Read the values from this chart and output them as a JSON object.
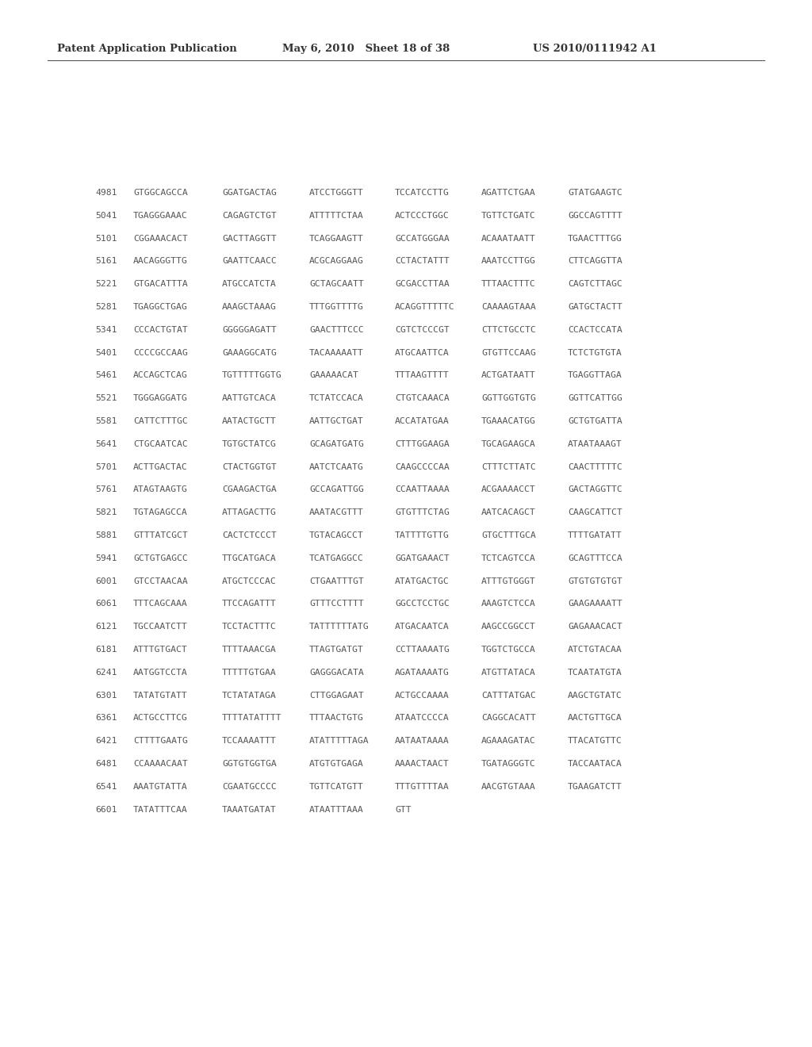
{
  "header_left": "Patent Application Publication",
  "header_mid": "May 6, 2010   Sheet 18 of 38",
  "header_right": "US 2010/0111942 A1",
  "sequence_lines": [
    [
      "4981",
      "GTGGCAGCCA",
      "GGATGACTAG",
      "ATCCTGGGTT",
      "TCCATCCTTG",
      "AGATTCTGAA",
      "GTATGAAGTC"
    ],
    [
      "5041",
      "TGAGGGAAAC",
      "CAGAGTCTGT",
      "ATTTTTCTAA",
      "ACTCCCTGGC",
      "TGTTCTGATC",
      "GGCCAGTTTT"
    ],
    [
      "5101",
      "CGGAAACACT",
      "GACTTAGGTT",
      "TCAGGAAGTT",
      "GCCATGGGAA",
      "ACAAATAATT",
      "TGAACTTTGG"
    ],
    [
      "5161",
      "AACAGGGTTG",
      "GAATTCAACC",
      "ACGCAGGAAG",
      "CCTACTATTT",
      "AAATCCTTGG",
      "CTTCAGGTTA"
    ],
    [
      "5221",
      "GTGACATTTA",
      "ATGCCATCTA",
      "GCTAGCAATT",
      "GCGACCTTAA",
      "TTTAACTTTC",
      "CAGTCTTAGC"
    ],
    [
      "5281",
      "TGAGGCTGAG",
      "AAAGCTAAAG",
      "TTTGGTTTTG",
      "ACAGGTTTTTC",
      "CAAAAGTAAA",
      "GATGCTACTT"
    ],
    [
      "5341",
      "CCCACTGTAT",
      "GGGGGAGATT",
      "GAACTTTCCC",
      "CGTCTCCCGT",
      "CTTCTGCCTC",
      "CCACTCCATA"
    ],
    [
      "5401",
      "CCCCGCCAAG",
      "GAAAGGCATG",
      "TACAAAAATT",
      "ATGCAATTCA",
      "GTGTTCCAAG",
      "TCTCTGTGTA"
    ],
    [
      "5461",
      "ACCAGCTCAG",
      "TGTTTTTGGTG",
      "GAAAAACAT",
      "TTTAAGTTTT",
      "ACTGATAATT",
      "TGAGGTTAGA"
    ],
    [
      "5521",
      "TGGGAGGATG",
      "AATTGTCACA",
      "TCTATCCACA",
      "CTGTCAAACA",
      "GGTTGGTGTG",
      "GGTTCATTGG"
    ],
    [
      "5581",
      "CATTCTTTGC",
      "AATACTGCTT",
      "AATTGCTGAT",
      "ACCATATGAA",
      "TGAAACATGG",
      "GCTGTGATTA"
    ],
    [
      "5641",
      "CTGCAATCAC",
      "TGTGCTATCG",
      "GCAGATGATG",
      "CTTTGGAAGA",
      "TGCAGAAGCA",
      "ATAATAAAGT"
    ],
    [
      "5701",
      "ACTTGACTAC",
      "CTACTGGTGT",
      "AATCTCAATG",
      "CAAGCCCCAA",
      "CTTTCTTATC",
      "CAACTTTTTC"
    ],
    [
      "5761",
      "ATAGTAAGTG",
      "CGAAGACTGA",
      "GCCAGATTGG",
      "CCAATTAAAA",
      "ACGAAAACCT",
      "GACTAGGTTC"
    ],
    [
      "5821",
      "TGTAGAGCCA",
      "ATTAGACTTG",
      "AAATACGTTT",
      "GTGTTTCTAG",
      "AATCACAGCT",
      "CAAGCATTCT"
    ],
    [
      "5881",
      "GTTTATCGCT",
      "CACTCTCCCT",
      "TGTACAGCCT",
      "TATTTTGTTG",
      "GTGCTTTGCA",
      "TTTTGATATT"
    ],
    [
      "5941",
      "GCTGTGAGCC",
      "TTGCATGACA",
      "TCATGAGGCC",
      "GGATGAAACT",
      "TCTCAGTCCA",
      "GCAGTTTCCA"
    ],
    [
      "6001",
      "GTCCTAACAA",
      "ATGCTCCCAC",
      "CTGAATTTGT",
      "ATATGACTGC",
      "ATTTGTGGGT",
      "GTGTGTGTGT"
    ],
    [
      "6061",
      "TTTCAGCAAA",
      "TTCCAGATTT",
      "GTTTCCTTTT",
      "GGCCTCCTGC",
      "AAAGTCTCCA",
      "GAAGAAAATT"
    ],
    [
      "6121",
      "TGCCAATCTT",
      "TCCTACTTTC",
      "TATTTTTTATG",
      "ATGACAATCA",
      "AAGCCGGCCT",
      "GAGAAACACT"
    ],
    [
      "6181",
      "ATTTGTGACT",
      "TTTTAAACGA",
      "TTAGTGATGT",
      "CCTTAAAATG",
      "TGGTCTGCCA",
      "ATCTGTACAA"
    ],
    [
      "6241",
      "AATGGTCCTA",
      "TTTTTGTGAA",
      "GAGGGACATA",
      "AGATAAAATG",
      "ATGTTATACA",
      "TCAATATGTA"
    ],
    [
      "6301",
      "TATATGTATT",
      "TCTATATAGA",
      "CTTGGAGAAT",
      "ACTGCCAAAA",
      "CATTTATGAC",
      "AAGCTGTATC"
    ],
    [
      "6361",
      "ACTGCCTTCG",
      "TTTTATATTTT",
      "TTTAACTGTG",
      "ATAATCCCCA",
      "CAGGCACATT",
      "AACTGTTGCA"
    ],
    [
      "6421",
      "CTTTTGAATG",
      "TCCAAAATTT",
      "ATATTTTTAGA",
      "AATAATAAAA",
      "AGAAAGATAC",
      "TTACATGTTC"
    ],
    [
      "6481",
      "CCAAAACAAT",
      "GGTGTGGTGA",
      "ATGTGTGAGA",
      "AAAACTAACT",
      "TGATAGGGTC",
      "TACCAATACA"
    ],
    [
      "6541",
      "AAATGTATTA",
      "CGAATGCCCC",
      "TGTTCATGTT",
      "TTTGTTTTAA",
      "AACGTGTAAA",
      "TGAAGATCTT"
    ],
    [
      "6601",
      "TATATTTCAA",
      "TAAATGATAT",
      "ATAATTTAAA",
      "GTT",
      "",
      ""
    ]
  ],
  "bg_color": "#ffffff",
  "text_color": "#555555",
  "header_color": "#333333",
  "line_color": "#555555"
}
